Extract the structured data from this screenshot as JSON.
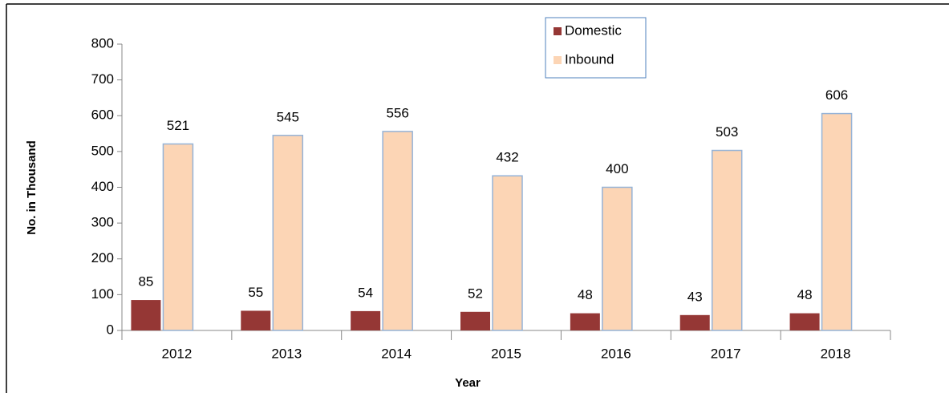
{
  "chart_data": {
    "type": "bar",
    "x_label": "Year",
    "y_label": "No. in Thousand",
    "categories": [
      "2012",
      "2013",
      "2014",
      "2015",
      "2016",
      "2017",
      "2018"
    ],
    "series": [
      {
        "name": "Domestic",
        "color": "#953735",
        "values": [
          85,
          55,
          54,
          52,
          48,
          43,
          48
        ]
      },
      {
        "name": "Inbound",
        "color": "#fcd5b5",
        "values": [
          521,
          545,
          556,
          432,
          400,
          503,
          606
        ]
      }
    ],
    "ylim": [
      0,
      800
    ],
    "yticks": [
      0,
      100,
      200,
      300,
      400,
      500,
      600,
      700,
      800
    ],
    "legend": "top"
  }
}
